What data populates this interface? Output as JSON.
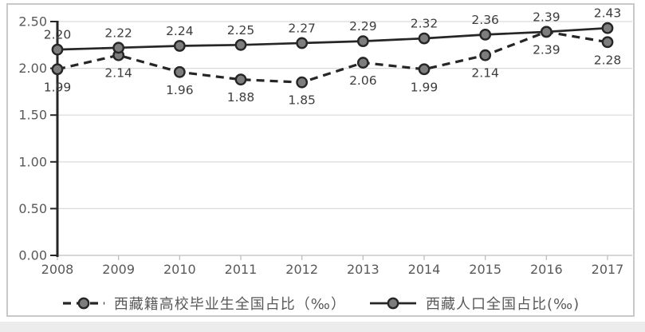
{
  "chart_data": {
    "type": "line",
    "title": "",
    "xlabel": "",
    "ylabel": "",
    "categories": [
      "2008",
      "2009",
      "2010",
      "2011",
      "2012",
      "2013",
      "2014",
      "2015",
      "2016",
      "2017"
    ],
    "series": [
      {
        "name": "西藏籍高校毕业生全国占比（‰）",
        "line_style": "dashed",
        "marker": "circle",
        "label_position": "below",
        "values": [
          1.99,
          2.14,
          1.96,
          1.88,
          1.85,
          2.06,
          1.99,
          2.14,
          2.39,
          2.28
        ]
      },
      {
        "name": "西藏人口全国占比(‰)",
        "line_style": "solid",
        "marker": "circle",
        "label_position": "above",
        "values": [
          2.2,
          2.22,
          2.24,
          2.25,
          2.27,
          2.29,
          2.32,
          2.36,
          2.39,
          2.43
        ]
      }
    ],
    "ylim": [
      0.0,
      2.5
    ],
    "ytick_step": 0.5,
    "ytick_labels": [
      "0.00",
      "0.50",
      "1.00",
      "1.50",
      "2.00",
      "2.50"
    ],
    "data_label_decimals": 2,
    "grid": true,
    "legend_position": "bottom"
  },
  "colors": {
    "line": "#262626",
    "marker_fill": "#7d7d7d",
    "marker_stroke": "#262626",
    "grid": "#d9d9d9",
    "y_axis": "#262626",
    "x_axis": "#bfbfbf",
    "tick_label": "#595959",
    "data_label": "#3d3d3d",
    "legend_text": "#595959",
    "frame_border": "#c9c9c9"
  }
}
